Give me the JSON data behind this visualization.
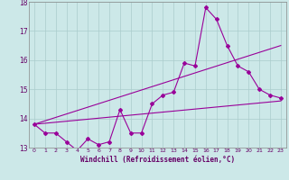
{
  "xlabel": "Windchill (Refroidissement éolien,°C)",
  "bg_color": "#cce8e8",
  "grid_color": "#aacccc",
  "line_color": "#990099",
  "x_values": [
    0,
    1,
    2,
    3,
    4,
    5,
    6,
    7,
    8,
    9,
    10,
    11,
    12,
    13,
    14,
    15,
    16,
    17,
    18,
    19,
    20,
    21,
    22,
    23
  ],
  "series1": [
    13.8,
    13.5,
    13.5,
    13.2,
    12.9,
    13.3,
    13.1,
    13.2,
    14.3,
    13.5,
    13.5,
    14.5,
    14.8,
    14.9,
    15.9,
    15.8,
    17.8,
    17.4,
    16.5,
    15.8,
    15.6,
    15.0,
    14.8,
    14.7
  ],
  "trend1_x": [
    0,
    23
  ],
  "trend1_y": [
    13.8,
    14.6
  ],
  "trend2_x": [
    0,
    23
  ],
  "trend2_y": [
    13.8,
    16.5
  ],
  "ylim": [
    13,
    18
  ],
  "xlim": [
    -0.5,
    23.5
  ],
  "yticks": [
    13,
    14,
    15,
    16,
    17,
    18
  ],
  "xticks": [
    0,
    1,
    2,
    3,
    4,
    5,
    6,
    7,
    8,
    9,
    10,
    11,
    12,
    13,
    14,
    15,
    16,
    17,
    18,
    19,
    20,
    21,
    22,
    23
  ]
}
